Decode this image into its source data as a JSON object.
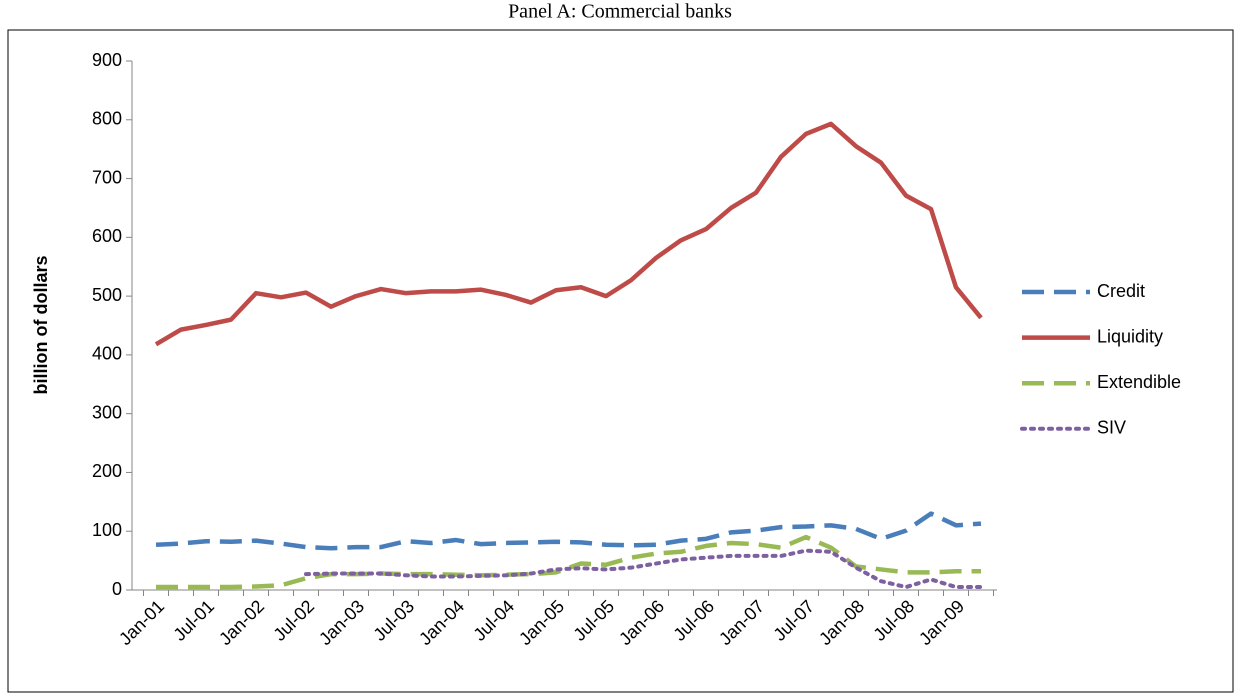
{
  "chart_data": {
    "type": "line",
    "title": "Panel A: Commercial banks",
    "ylabel": "billion of dollars",
    "categories": [
      "Jan-01",
      null,
      "Jul-01",
      null,
      "Jan-02",
      null,
      "Jul-02",
      null,
      "Jan-03",
      null,
      "Jul-03",
      null,
      "Jan-04",
      null,
      "Jul-04",
      null,
      "Jan-05",
      null,
      "Jul-05",
      null,
      "Jan-06",
      null,
      "Jul-06",
      null,
      "Jan-07",
      null,
      "Jul-07",
      null,
      "Jan-08",
      null,
      "Jul-08",
      null,
      "Jan-09",
      null
    ],
    "series": [
      {
        "name": "Credit",
        "color": "#4a7ebb",
        "linestyle": "dashed",
        "values": [
          77,
          79,
          83,
          82,
          84,
          79,
          73,
          71,
          73,
          73,
          83,
          80,
          85,
          78,
          80,
          81,
          82,
          81,
          77,
          76,
          77,
          84,
          87,
          98,
          101,
          107,
          108,
          110,
          104,
          87,
          101,
          130,
          110,
          113
        ]
      },
      {
        "name": "Liquidity",
        "color": "#be4b48",
        "linestyle": "solid",
        "values": [
          418,
          443,
          451,
          460,
          505,
          498,
          506,
          482,
          500,
          512,
          505,
          508,
          508,
          511,
          502,
          489,
          510,
          515,
          500,
          527,
          565,
          595,
          614,
          650,
          676,
          737,
          776,
          793,
          755,
          727,
          671,
          648,
          515,
          463
        ]
      },
      {
        "name": "Extendible",
        "color": "#98b954",
        "linestyle": "dashed",
        "values": [
          5,
          5,
          5,
          5,
          6,
          8,
          20,
          27,
          27,
          28,
          27,
          27,
          26,
          25,
          26,
          27,
          30,
          45,
          43,
          55,
          62,
          65,
          75,
          80,
          78,
          72,
          90,
          72,
          40,
          35,
          30,
          30,
          32,
          32
        ]
      },
      {
        "name": "SIV",
        "color": "#7d60a0",
        "linestyle": "dotted",
        "values": [
          null,
          null,
          null,
          null,
          null,
          null,
          27,
          28,
          28,
          28,
          25,
          23,
          23,
          24,
          25,
          28,
          35,
          37,
          35,
          38,
          45,
          52,
          55,
          58,
          58,
          58,
          67,
          65,
          38,
          15,
          5,
          18,
          5,
          5
        ]
      }
    ],
    "ylim": [
      0,
      900
    ],
    "yticks": [
      0,
      100,
      200,
      300,
      400,
      500,
      600,
      700,
      800,
      900
    ],
    "grid": false,
    "legend": "right"
  }
}
